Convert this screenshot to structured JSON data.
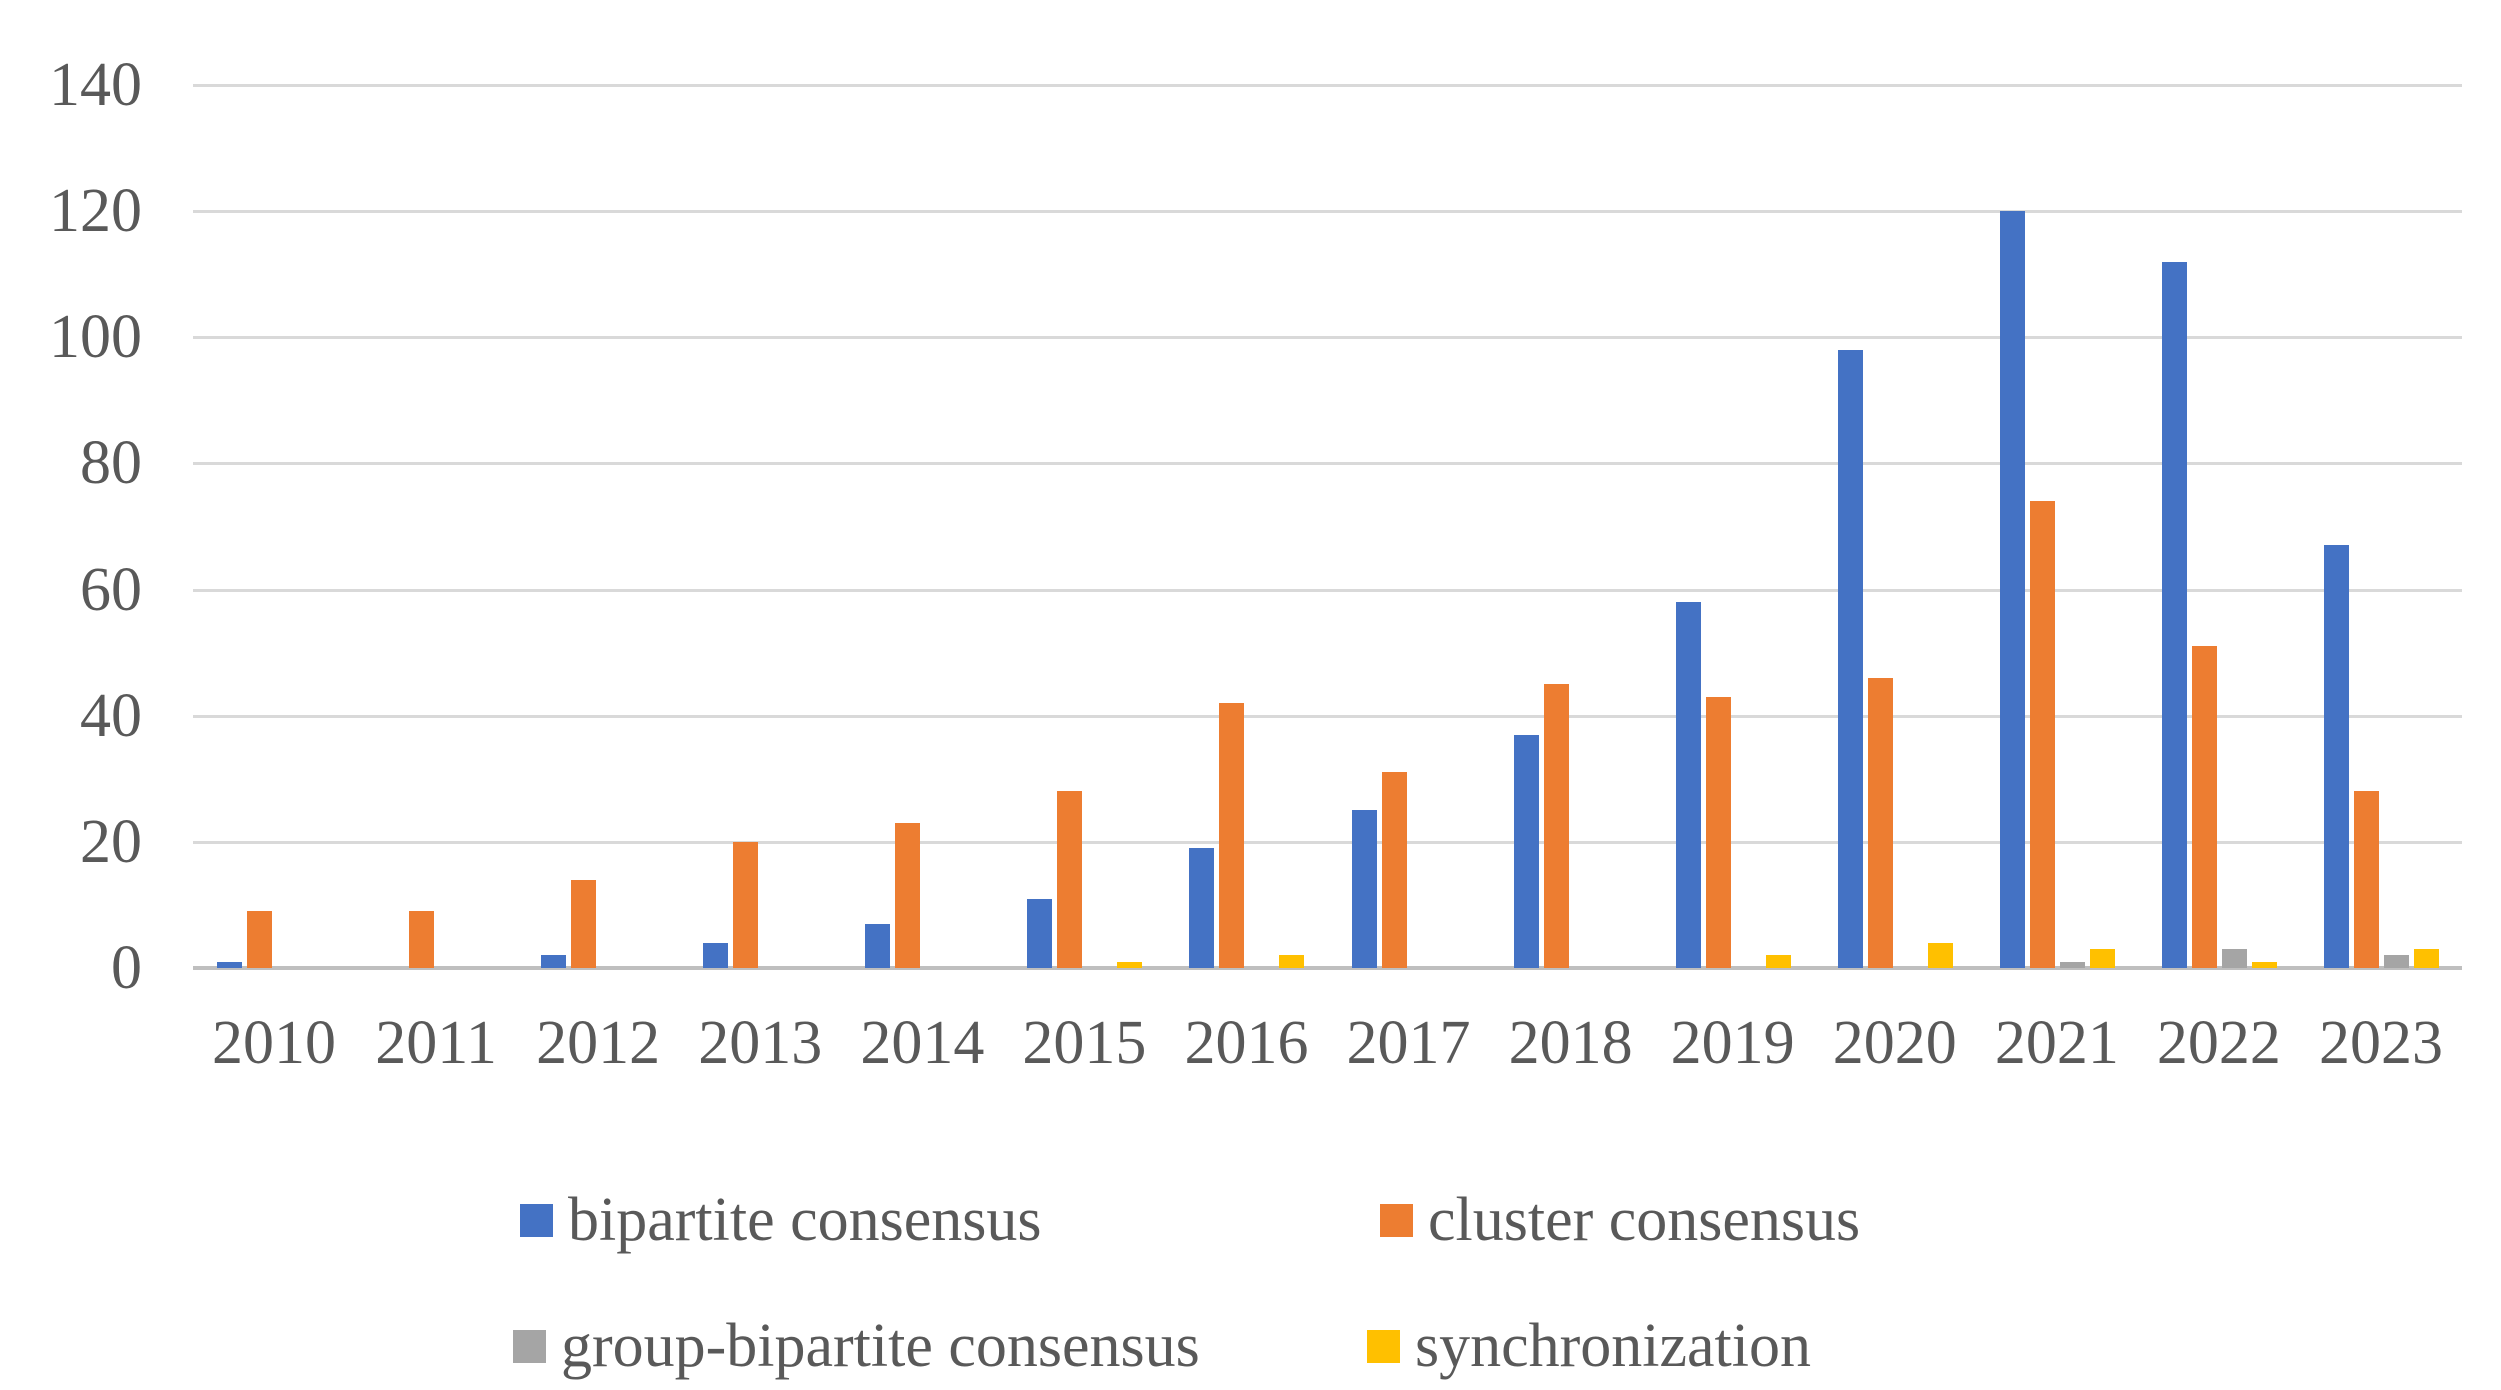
{
  "figure": {
    "background_color": "#FFFFFF",
    "text_color": "#595959",
    "gridline_color": "#D9D9D9",
    "axis_line_color": "#BFBFBF"
  },
  "chart_data": {
    "type": "bar",
    "title": "",
    "xlabel": "",
    "ylabel": "",
    "categories": [
      "2010",
      "2011",
      "2012",
      "2013",
      "2014",
      "2015",
      "2016",
      "2017",
      "2018",
      "2019",
      "2020",
      "2021",
      "2022",
      "2023"
    ],
    "series": [
      {
        "name": "bipartite consensus",
        "color": "#4472C4",
        "values": [
          1,
          0,
          2,
          4,
          7,
          11,
          19,
          25,
          37,
          58,
          98,
          120,
          112,
          67
        ]
      },
      {
        "name": "cluster consensus",
        "color": "#ED7D31",
        "values": [
          9,
          9,
          14,
          20,
          23,
          28,
          42,
          31,
          45,
          43,
          46,
          74,
          51,
          28
        ]
      },
      {
        "name": "group-bipartite consensus",
        "color": "#A5A5A5",
        "values": [
          0,
          0,
          0,
          0,
          0,
          0,
          0,
          0,
          0,
          0,
          0,
          1,
          3,
          2
        ]
      },
      {
        "name": "synchronization",
        "color": "#FFC000",
        "values": [
          0,
          0,
          0,
          0,
          0,
          1,
          2,
          0,
          0,
          2,
          4,
          3,
          1,
          3
        ]
      }
    ],
    "y_ticks": [
      0,
      20,
      40,
      60,
      80,
      100,
      120,
      140
    ],
    "ylim": [
      0,
      140
    ],
    "grid": true,
    "legend_position": "bottom",
    "legend_rows": [
      [
        "bipartite consensus",
        "cluster consensus"
      ],
      [
        "group-bipartite consensus",
        "synchronization"
      ]
    ]
  }
}
